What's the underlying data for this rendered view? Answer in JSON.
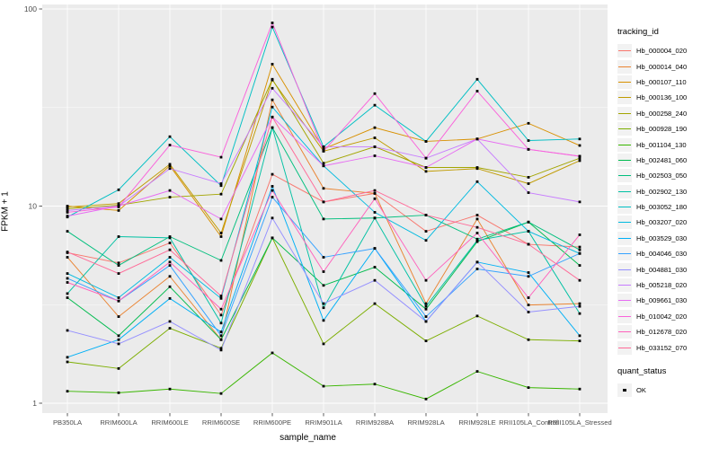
{
  "chart_data": {
    "type": "line",
    "title": "",
    "xlabel": "sample_name",
    "ylabel": "FPKM + 1",
    "y_scale": "log10",
    "ylim": [
      1,
      100
    ],
    "y_ticks": [
      1,
      10,
      100
    ],
    "y_minor_ticks": [
      3.1623,
      31.623
    ],
    "grid": "on",
    "panel_bg": "#EBEBEB",
    "grid_major_color": "#FFFFFF",
    "grid_minor_color": "#FFFFFF",
    "axis_text_color": "#4D4D4D",
    "marker": "black-square",
    "legend_position": "right",
    "categories": [
      "PB350LA",
      "RRIM600LA",
      "RRIM600LE",
      "RRIM600SE",
      "RRIM600PE",
      "RRIM901LA",
      "RRIM928BA",
      "RRIM928LA",
      "RRIM928LE",
      "RRII105LA_Control",
      "RRII105LA_Stressed"
    ],
    "series": [
      {
        "name": "Hb_000004_020",
        "color": "#F8766D",
        "values": [
          5.8,
          5.15,
          6.5,
          2.8,
          14.5,
          10.5,
          11.6,
          7.45,
          9.0,
          6.4,
          6.2
        ]
      },
      {
        "name": "Hb_000014_040",
        "color": "#EA8331",
        "values": [
          5.5,
          2.75,
          4.4,
          2.1,
          34.6,
          12.3,
          11.6,
          3.2,
          8.6,
          3.15,
          3.2
        ]
      },
      {
        "name": "Hb_000107_110",
        "color": "#D89000",
        "values": [
          10.0,
          9.5,
          16.0,
          7.0,
          52.5,
          19.5,
          25.0,
          21.3,
          21.9,
          26.3,
          20.3
        ]
      },
      {
        "name": "Hb_000136_100",
        "color": "#C09B00",
        "values": [
          9.9,
          10.3,
          16.3,
          7.3,
          43.6,
          19.0,
          22.2,
          15.0,
          15.5,
          13.0,
          17.0
        ]
      },
      {
        "name": "Hb_000258_240",
        "color": "#A3A500",
        "values": [
          9.7,
          10.1,
          11.1,
          11.5,
          44.0,
          16.5,
          20.0,
          15.7,
          15.7,
          14.0,
          17.5
        ]
      },
      {
        "name": "Hb_000928_190",
        "color": "#7CAE00",
        "values": [
          1.62,
          1.5,
          2.4,
          1.9,
          6.9,
          2.0,
          3.2,
          2.07,
          2.77,
          2.1,
          2.07
        ]
      },
      {
        "name": "Hb_001104_130",
        "color": "#39B600",
        "values": [
          1.15,
          1.13,
          1.18,
          1.12,
          1.8,
          1.22,
          1.25,
          1.05,
          1.45,
          1.2,
          1.18
        ]
      },
      {
        "name": "Hb_002481_060",
        "color": "#00BB4E",
        "values": [
          3.43,
          2.2,
          3.9,
          2.1,
          6.9,
          3.96,
          4.9,
          3.0,
          6.6,
          8.3,
          5.0
        ]
      },
      {
        "name": "Hb_002503_050",
        "color": "#00BF7D",
        "values": [
          7.45,
          5.0,
          7.0,
          5.3,
          25.0,
          8.6,
          8.7,
          9.0,
          6.8,
          8.3,
          6.0
        ]
      },
      {
        "name": "Hb_002902_130",
        "color": "#00C1A3",
        "values": [
          3.6,
          7.0,
          6.9,
          2.55,
          25.0,
          3.05,
          8.7,
          3.1,
          6.7,
          7.45,
          2.85
        ]
      },
      {
        "name": "Hb_003052_180",
        "color": "#00BFC4",
        "values": [
          8.8,
          12.1,
          22.5,
          12.7,
          81.0,
          20.0,
          32.5,
          21.3,
          44.0,
          21.5,
          21.9
        ]
      },
      {
        "name": "Hb_003207_020",
        "color": "#00BAE0",
        "values": [
          4.55,
          3.43,
          5.5,
          3.4,
          31.8,
          16.0,
          9.3,
          6.7,
          13.3,
          7.45,
          5.75
        ]
      },
      {
        "name": "Hb_003529_030",
        "color": "#00B0F6",
        "values": [
          1.71,
          2.1,
          3.4,
          2.3,
          12.6,
          2.63,
          6.1,
          2.6,
          5.2,
          4.6,
          2.2
        ]
      },
      {
        "name": "Hb_004046_030",
        "color": "#35A2FF",
        "values": [
          4.3,
          3.3,
          5.0,
          2.2,
          11.1,
          5.5,
          6.1,
          2.75,
          4.8,
          4.4,
          5.75
        ]
      },
      {
        "name": "Hb_004881_030",
        "color": "#9590FF",
        "values": [
          2.34,
          2.0,
          2.6,
          1.86,
          8.7,
          3.2,
          4.2,
          2.6,
          5.2,
          2.9,
          3.1
        ]
      },
      {
        "name": "Hb_005218_020",
        "color": "#C77CFF",
        "values": [
          9.5,
          10.0,
          15.5,
          13.0,
          39.6,
          20.0,
          20.0,
          17.5,
          21.9,
          11.7,
          10.5
        ]
      },
      {
        "name": "Hb_009661_030",
        "color": "#E76BF3",
        "values": [
          8.9,
          10.0,
          12.0,
          8.6,
          28.3,
          16.0,
          18.0,
          15.7,
          21.9,
          19.4,
          17.9
        ]
      },
      {
        "name": "Hb_010042_020",
        "color": "#FA62DB",
        "values": [
          9.3,
          9.9,
          20.4,
          17.7,
          85.0,
          19.0,
          37.2,
          17.5,
          38.3,
          19.4,
          17.9
        ]
      },
      {
        "name": "Hb_012678_020",
        "color": "#FF62BC",
        "values": [
          4.1,
          3.3,
          5.2,
          3.0,
          12.0,
          4.65,
          10.9,
          4.2,
          7.3,
          3.43,
          7.15
        ]
      },
      {
        "name": "Hb_033152_070",
        "color": "#FF6A98",
        "values": [
          5.85,
          4.55,
          6.0,
          3.5,
          28.3,
          10.5,
          12.0,
          9.0,
          7.8,
          6.4,
          4.2
        ]
      }
    ]
  },
  "legend": {
    "tracking_title": "tracking_id",
    "quant_title": "quant_status",
    "quant_items": [
      {
        "label": "OK"
      }
    ]
  }
}
